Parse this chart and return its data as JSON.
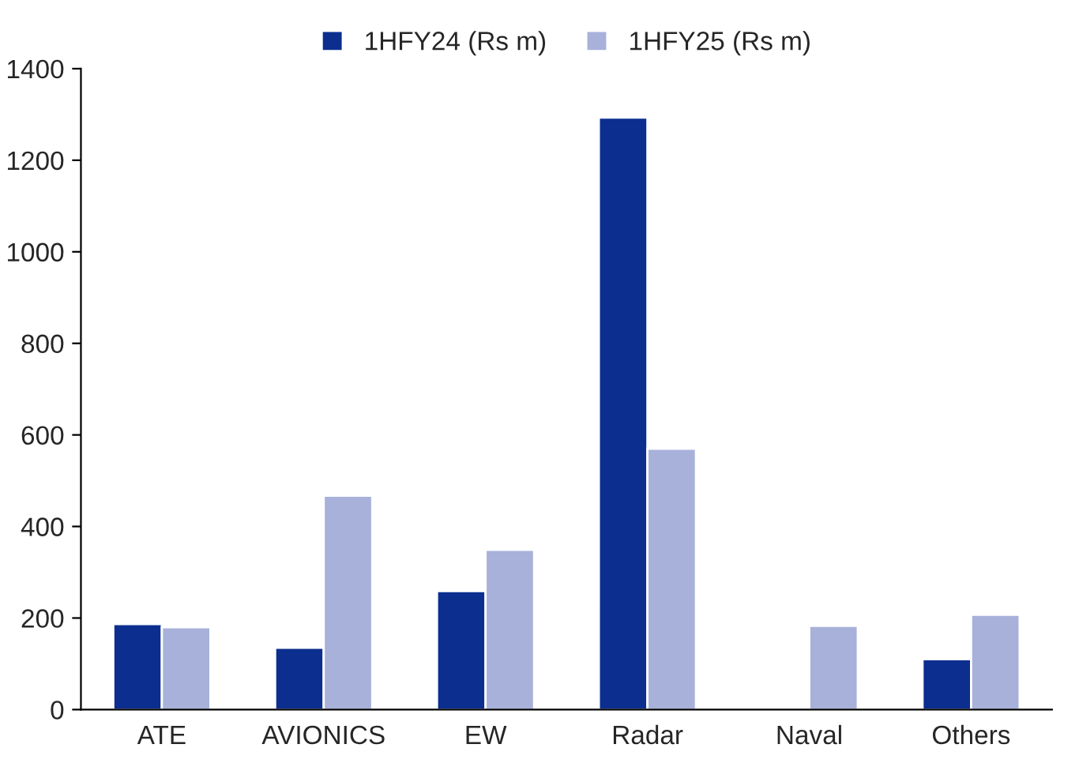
{
  "chart_data": {
    "type": "bar",
    "categories": [
      "ATE",
      "AVIONICS",
      "EW",
      "Radar",
      "Naval",
      "Others"
    ],
    "series": [
      {
        "name": "1HFY24 (Rs m)",
        "color": "#0b2e8f",
        "values": [
          187,
          135,
          259,
          1293,
          3,
          110
        ]
      },
      {
        "name": "1HFY25 (Rs m)",
        "color": "#a7b1da",
        "values": [
          180,
          467,
          349,
          570,
          183,
          207
        ]
      }
    ],
    "ylim": [
      0,
      1400
    ],
    "yticks": [
      0,
      200,
      400,
      600,
      800,
      1000,
      1200,
      1400
    ],
    "grid": false,
    "legend": "top"
  }
}
